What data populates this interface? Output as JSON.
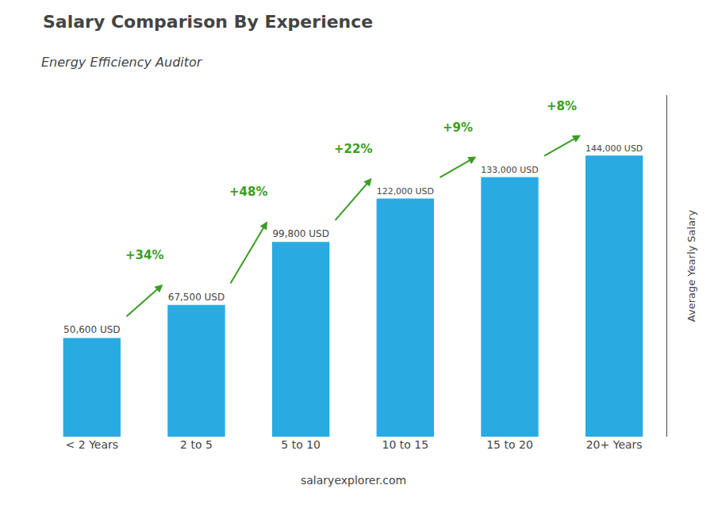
{
  "chart_data": {
    "type": "bar",
    "title": "Salary Comparison By Experience",
    "subtitle": "Energy Efficiency Auditor",
    "ylabel": "Average Yearly Salary",
    "categories": [
      "< 2 Years",
      "2 to 5",
      "5 to 10",
      "10 to 15",
      "15 to 20",
      "20+ Years"
    ],
    "values": [
      50600,
      67500,
      99800,
      122000,
      133000,
      144000
    ],
    "value_labels": [
      "50,600 USD",
      "67,500 USD",
      "99,800 USD",
      "122,000 USD",
      "133,000 USD",
      "144,000 USD"
    ],
    "data_labels": true,
    "annotations": [
      "+34%",
      "+48%",
      "+22%",
      "+9%",
      "+8%"
    ],
    "footer": "salaryexplorer.com",
    "color": "#29ABE2",
    "ylim": [
      0,
      175000
    ],
    "grid": false,
    "tick_labels": "x"
  }
}
